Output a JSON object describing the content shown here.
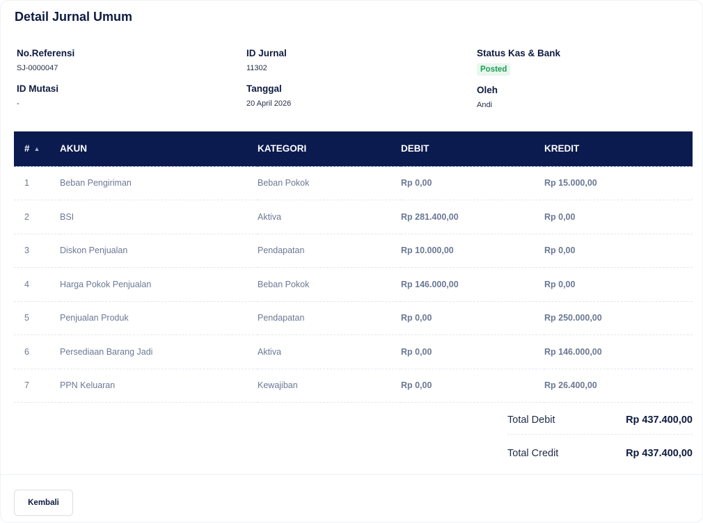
{
  "page": {
    "title": "Detail Jurnal Umum"
  },
  "info": {
    "no_referensi": {
      "label": "No.Referensi",
      "value": "SJ-0000047"
    },
    "id_mutasi": {
      "label": "ID Mutasi",
      "value": "-"
    },
    "id_jurnal": {
      "label": "ID Jurnal",
      "value": "11302"
    },
    "tanggal": {
      "label": "Tanggal",
      "value": "20 April 2026"
    },
    "status": {
      "label": "Status Kas & Bank",
      "value": "Posted"
    },
    "oleh": {
      "label": "Oleh",
      "value": "Andi"
    }
  },
  "table": {
    "columns": [
      "#",
      "AKUN",
      "KATEGORI",
      "DEBIT",
      "KREDIT"
    ],
    "rows": [
      {
        "no": "1",
        "akun": "Beban Pengiriman",
        "kategori": "Beban Pokok",
        "debit": "Rp 0,00",
        "kredit": "Rp 15.000,00"
      },
      {
        "no": "2",
        "akun": "BSI",
        "kategori": "Aktiva",
        "debit": "Rp 281.400,00",
        "kredit": "Rp 0,00"
      },
      {
        "no": "3",
        "akun": "Diskon Penjualan",
        "kategori": "Pendapatan",
        "debit": "Rp 10.000,00",
        "kredit": "Rp 0,00"
      },
      {
        "no": "4",
        "akun": "Harga Pokok Penjualan",
        "kategori": "Beban Pokok",
        "debit": "Rp 146.000,00",
        "kredit": "Rp 0,00"
      },
      {
        "no": "5",
        "akun": "Penjualan Produk",
        "kategori": "Pendapatan",
        "debit": "Rp 0,00",
        "kredit": "Rp 250.000,00"
      },
      {
        "no": "6",
        "akun": "Persediaan Barang Jadi",
        "kategori": "Aktiva",
        "debit": "Rp 0,00",
        "kredit": "Rp 146.000,00"
      },
      {
        "no": "7",
        "akun": "PPN Keluaran",
        "kategori": "Kewajiban",
        "debit": "Rp 0,00",
        "kredit": "Rp 26.400,00"
      }
    ]
  },
  "totals": {
    "debit": {
      "label": "Total Debit",
      "value": "Rp 437.400,00"
    },
    "credit": {
      "label": "Total Credit",
      "value": "Rp 437.400,00"
    }
  },
  "footer": {
    "back_label": "Kembali"
  },
  "icons": {
    "sort": "sort-ascending-icon"
  },
  "colors": {
    "header_bg": "#0b1a4f",
    "badge_bg": "#e8f7ee",
    "badge_text": "#1f9d55"
  }
}
